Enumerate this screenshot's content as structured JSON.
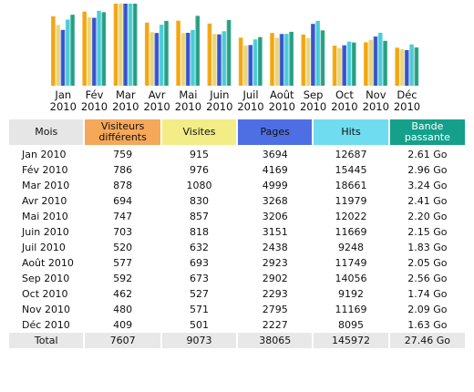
{
  "chart_data": {
    "type": "bar",
    "categories": [
      [
        "Jan",
        "2010"
      ],
      [
        "Fév",
        "2010"
      ],
      [
        "Mar",
        "2010"
      ],
      [
        "Avr",
        "2010"
      ],
      [
        "Mai",
        "2010"
      ],
      [
        "Juin",
        "2010"
      ],
      [
        "Juil",
        "2010"
      ],
      [
        "Août",
        "2010"
      ],
      [
        "Sep",
        "2010"
      ],
      [
        "Oct",
        "2010"
      ],
      [
        "Nov",
        "2010"
      ],
      [
        "Déc",
        "2010"
      ]
    ],
    "series": [
      {
        "name": "Visites",
        "values": [
          915,
          976,
          1080,
          830,
          857,
          818,
          632,
          693,
          673,
          527,
          571,
          501
        ],
        "color": "#f3a000"
      },
      {
        "name": "Pages",
        "values": [
          3694,
          4169,
          4999,
          3268,
          3206,
          3151,
          2438,
          2923,
          2902,
          2293,
          2795,
          2227
        ],
        "color": "#e8d370"
      },
      {
        "name": "Hits",
        "values": [
          12687,
          15445,
          18661,
          11979,
          12022,
          11669,
          9248,
          11749,
          14056,
          9192,
          11169,
          8095
        ],
        "color": "#2c49c8"
      },
      {
        "name": "Bande passante",
        "values": [
          2.61,
          2.96,
          3.24,
          2.41,
          2.2,
          2.15,
          1.83,
          2.05,
          2.56,
          1.74,
          2.09,
          1.63
        ],
        "color": "#3ec9d6"
      },
      {
        "name": "Visiteurs différents",
        "values": [
          759,
          786,
          878,
          694,
          747,
          703,
          520,
          577,
          592,
          462,
          480,
          409
        ],
        "color": "#1a9a7c"
      }
    ]
  },
  "table": {
    "headers": [
      {
        "label": "Mois",
        "bg": "#e6e6e6",
        "color": "#111111"
      },
      {
        "label": "Visiteurs différents",
        "bg": "#f5a85a",
        "color": "#111111"
      },
      {
        "label": "Visites",
        "bg": "#f2ed86",
        "color": "#111111"
      },
      {
        "label": "Pages",
        "bg": "#4e6fe3",
        "color": "#111111"
      },
      {
        "label": "Hits",
        "bg": "#6fdcf0",
        "color": "#111111"
      },
      {
        "label": "Bande passante",
        "bg": "#14a08b",
        "color": "#ffffff"
      }
    ],
    "rows": [
      [
        "Jan 2010",
        "759",
        "915",
        "3694",
        "12687",
        "2.61 Go"
      ],
      [
        "Fév 2010",
        "786",
        "976",
        "4169",
        "15445",
        "2.96 Go"
      ],
      [
        "Mar 2010",
        "878",
        "1080",
        "4999",
        "18661",
        "3.24 Go"
      ],
      [
        "Avr 2010",
        "694",
        "830",
        "3268",
        "11979",
        "2.41 Go"
      ],
      [
        "Mai 2010",
        "747",
        "857",
        "3206",
        "12022",
        "2.20 Go"
      ],
      [
        "Juin 2010",
        "703",
        "818",
        "3151",
        "11669",
        "2.15 Go"
      ],
      [
        "Juil 2010",
        "520",
        "632",
        "2438",
        "9248",
        "1.83 Go"
      ],
      [
        "Août 2010",
        "577",
        "693",
        "2923",
        "11749",
        "2.05 Go"
      ],
      [
        "Sep 2010",
        "592",
        "673",
        "2902",
        "14056",
        "2.56 Go"
      ],
      [
        "Oct 2010",
        "462",
        "527",
        "2293",
        "9192",
        "1.74 Go"
      ],
      [
        "Nov 2010",
        "480",
        "571",
        "2795",
        "11169",
        "2.09 Go"
      ],
      [
        "Déc 2010",
        "409",
        "501",
        "2227",
        "8095",
        "1.63 Go"
      ]
    ],
    "total": [
      "Total",
      "7607",
      "9073",
      "38065",
      "145972",
      "27.46 Go"
    ]
  }
}
